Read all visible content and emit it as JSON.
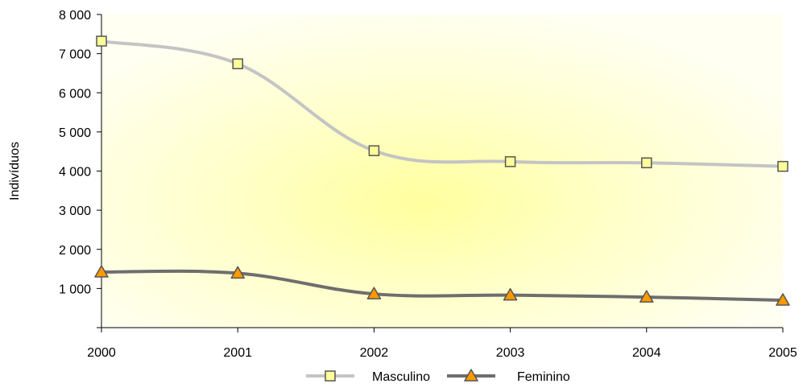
{
  "chart_data": {
    "type": "line",
    "title": "",
    "xlabel": "",
    "ylabel": "Indivíduos",
    "x": [
      "2000",
      "2001",
      "2002",
      "2003",
      "2004",
      "2005"
    ],
    "ylim": [
      0,
      8000
    ],
    "yticks": [
      1000,
      2000,
      3000,
      4000,
      5000,
      6000,
      7000,
      8000
    ],
    "ytick_labels": [
      "1 000",
      "2 000",
      "3 000",
      "4 000",
      "5 000",
      "6 000",
      "7 000",
      "8 000"
    ],
    "grid": false,
    "smooth": true,
    "legend_position": "bottom",
    "background": "radial gradient, yellow center fading to pale cream",
    "series": [
      {
        "name": "Masculino",
        "values": [
          7320,
          6740,
          4520,
          4240,
          4210,
          4120
        ],
        "line_color": "#c4c4c4",
        "marker": "square",
        "marker_fill": "#ffff99",
        "marker_stroke": "#555555"
      },
      {
        "name": "Feminino",
        "values": [
          1420,
          1390,
          860,
          830,
          780,
          700
        ],
        "line_color": "#6e6e6e",
        "marker": "triangle",
        "marker_fill": "#ff9900",
        "marker_stroke": "#555555"
      }
    ]
  }
}
